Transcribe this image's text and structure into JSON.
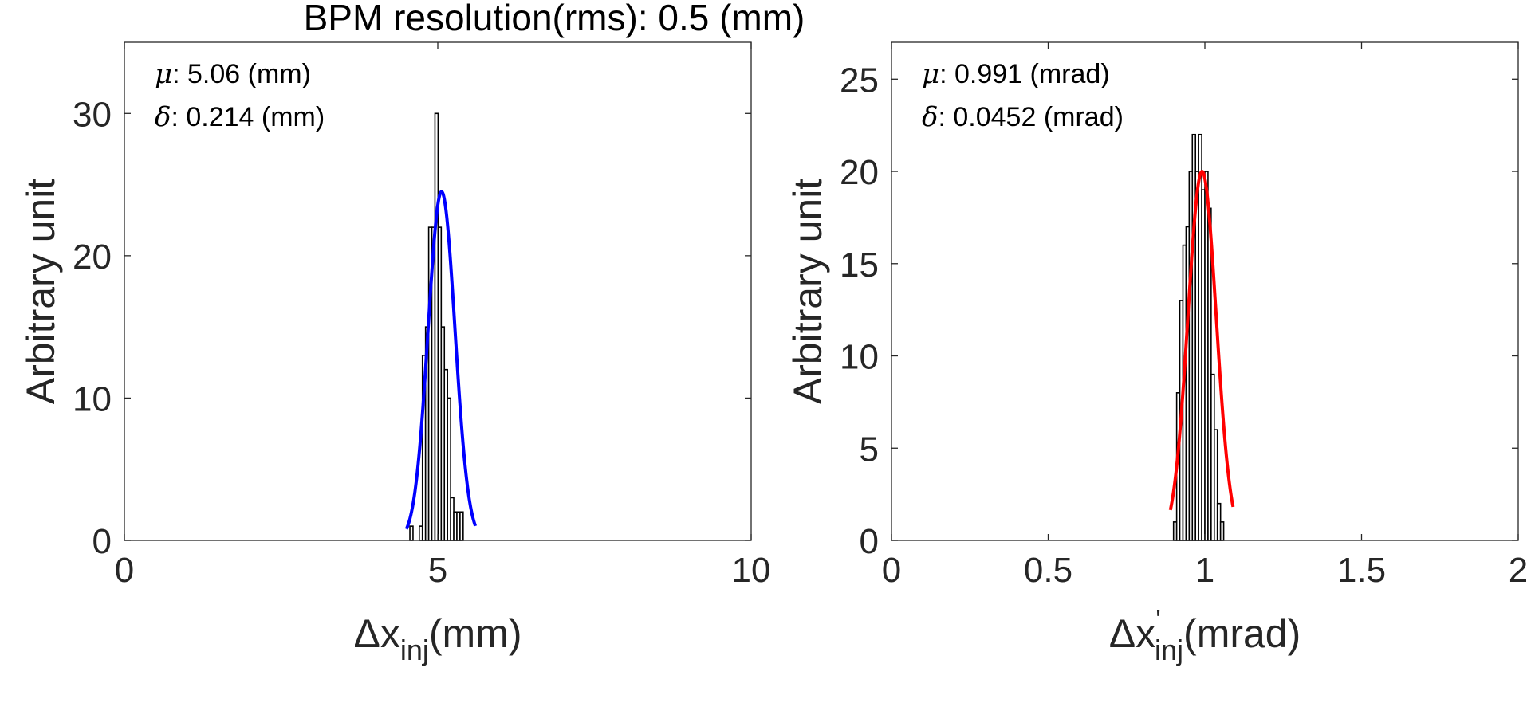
{
  "figure": {
    "title": "BPM resolution(rms): 0.5 (mm)"
  },
  "chart_data": [
    {
      "type": "bar",
      "ylabel": "Arbitrary unit",
      "xlabel": {
        "symbol": "Δx",
        "prime": "",
        "subscript": "inj",
        "unit": "(mm)"
      },
      "xlim": [
        0,
        10
      ],
      "ylim": [
        0,
        35
      ],
      "xticks": [
        "0",
        "5",
        "10"
      ],
      "xtick_values": [
        0,
        5,
        10
      ],
      "yticks": [
        "0",
        "10",
        "20",
        "30"
      ],
      "ytick_values": [
        0,
        10,
        20,
        30
      ],
      "bin_width": 0.05,
      "bins": [
        {
          "x": 4.58,
          "y": 1
        },
        {
          "x": 4.63,
          "y": 0
        },
        {
          "x": 4.68,
          "y": 0
        },
        {
          "x": 4.73,
          "y": 1
        },
        {
          "x": 4.78,
          "y": 13
        },
        {
          "x": 4.83,
          "y": 15
        },
        {
          "x": 4.88,
          "y": 22
        },
        {
          "x": 4.93,
          "y": 22
        },
        {
          "x": 4.98,
          "y": 30
        },
        {
          "x": 5.03,
          "y": 22
        },
        {
          "x": 5.08,
          "y": 15
        },
        {
          "x": 5.13,
          "y": 12
        },
        {
          "x": 5.18,
          "y": 10
        },
        {
          "x": 5.23,
          "y": 3
        },
        {
          "x": 5.28,
          "y": 2
        },
        {
          "x": 5.33,
          "y": 2
        },
        {
          "x": 5.38,
          "y": 2
        }
      ],
      "fit": {
        "color": "#0000ff",
        "mu": 5.06,
        "sigma": 0.214,
        "peak": 24.5,
        "range": [
          4.5,
          5.6
        ]
      },
      "stats": {
        "mu_symbol": "μ",
        "mu_text": ": 5.06 (mm)",
        "delta_symbol": "δ",
        "delta_text": ": 0.214 (mm)"
      }
    },
    {
      "type": "bar",
      "ylabel": "Arbitrary unit",
      "xlabel": {
        "symbol": "Δx",
        "prime": "'",
        "subscript": "inj",
        "unit": "(mrad)"
      },
      "xlim": [
        0,
        2
      ],
      "ylim": [
        0,
        27
      ],
      "xticks": [
        "0",
        "0.5",
        "1",
        "1.5",
        "2"
      ],
      "xtick_values": [
        0,
        0.5,
        1,
        1.5,
        2
      ],
      "yticks": [
        "0",
        "5",
        "10",
        "15",
        "20",
        "25"
      ],
      "ytick_values": [
        0,
        5,
        10,
        15,
        20,
        25
      ],
      "bin_width": 0.01,
      "bins": [
        {
          "x": 0.905,
          "y": 1
        },
        {
          "x": 0.915,
          "y": 8
        },
        {
          "x": 0.925,
          "y": 13
        },
        {
          "x": 0.935,
          "y": 16
        },
        {
          "x": 0.945,
          "y": 17
        },
        {
          "x": 0.955,
          "y": 20
        },
        {
          "x": 0.965,
          "y": 22
        },
        {
          "x": 0.975,
          "y": 20
        },
        {
          "x": 0.985,
          "y": 22
        },
        {
          "x": 0.995,
          "y": 19
        },
        {
          "x": 1.005,
          "y": 20
        },
        {
          "x": 1.015,
          "y": 18
        },
        {
          "x": 1.025,
          "y": 9
        },
        {
          "x": 1.035,
          "y": 6
        },
        {
          "x": 1.045,
          "y": 2
        },
        {
          "x": 1.055,
          "y": 1
        }
      ],
      "fit": {
        "color": "#ff0000",
        "mu": 0.991,
        "sigma": 0.0452,
        "peak": 20,
        "range": [
          0.89,
          1.09
        ]
      },
      "stats": {
        "mu_symbol": "μ",
        "mu_text": ": 0.991 (mrad)",
        "delta_symbol": "δ",
        "delta_text": ": 0.0452 (mrad)"
      }
    }
  ]
}
